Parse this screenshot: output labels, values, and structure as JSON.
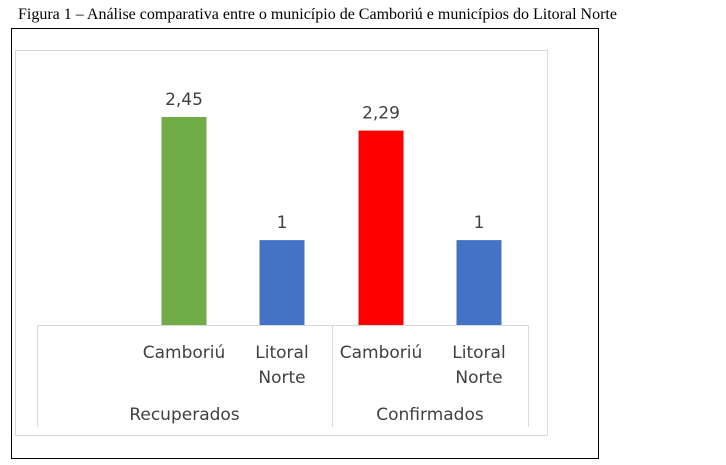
{
  "figure": {
    "caption": "Figura 1 – Análise comparativa entre o município de Camboriú e municípios do Litoral Norte"
  },
  "chart_data": {
    "type": "bar",
    "groups": [
      {
        "name": "Recuperados",
        "bars": [
          {
            "category": "Camboriú",
            "category_lines": [
              "Camboriú"
            ],
            "value": 2.45,
            "label": "2,45",
            "color": "#70AD47"
          },
          {
            "category": "Litoral Norte",
            "category_lines": [
              "Litoral",
              "Norte"
            ],
            "value": 1,
            "label": "1",
            "color": "#4472C4"
          }
        ]
      },
      {
        "name": "Confirmados",
        "bars": [
          {
            "category": "Camboriú",
            "category_lines": [
              "Camboriú"
            ],
            "value": 2.29,
            "label": "2,29",
            "color": "#FF0000"
          },
          {
            "category": "Litoral Norte",
            "category_lines": [
              "Litoral",
              "Norte"
            ],
            "value": 1,
            "label": "1",
            "color": "#4472C4"
          }
        ]
      }
    ],
    "ylim": [
      0,
      2.45
    ],
    "grid": false,
    "legend": "none"
  }
}
